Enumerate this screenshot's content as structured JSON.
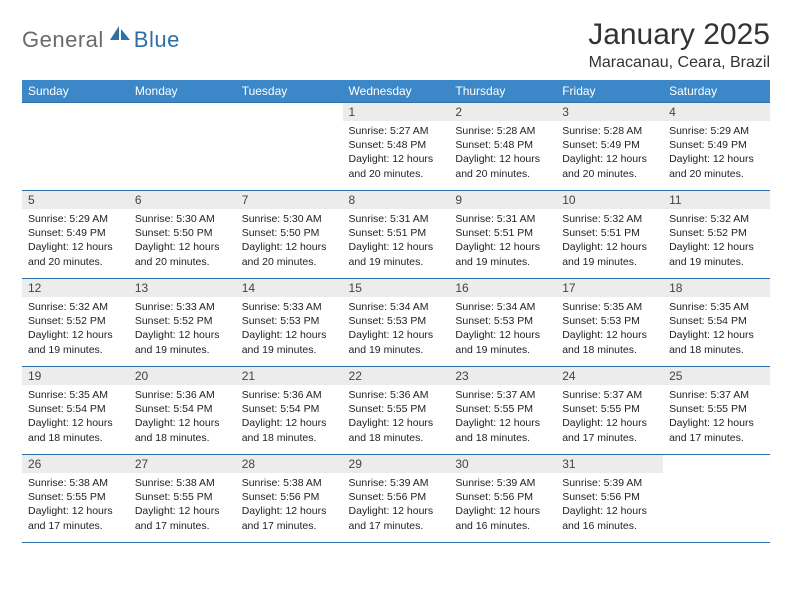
{
  "logo": {
    "general": "General",
    "blue": "Blue"
  },
  "title": "January 2025",
  "location": "Maracanau, Ceara, Brazil",
  "colors": {
    "header_bg": "#3b87c8",
    "header_text": "#ffffff",
    "rule": "#2f6fa9",
    "daynum_bg": "#ececec",
    "text": "#222222",
    "logo_gray": "#6a6a6a",
    "logo_blue": "#2f6fa9"
  },
  "typography": {
    "title_fontsize": 30,
    "location_fontsize": 16,
    "weekday_fontsize": 12,
    "daynum_fontsize": 12,
    "cell_fontsize": 10.5
  },
  "weekdays": [
    "Sunday",
    "Monday",
    "Tuesday",
    "Wednesday",
    "Thursday",
    "Friday",
    "Saturday"
  ],
  "weeks": [
    [
      null,
      null,
      null,
      {
        "n": "1",
        "sr": "5:27 AM",
        "ss": "5:48 PM",
        "dl": "12 hours and 20 minutes."
      },
      {
        "n": "2",
        "sr": "5:28 AM",
        "ss": "5:48 PM",
        "dl": "12 hours and 20 minutes."
      },
      {
        "n": "3",
        "sr": "5:28 AM",
        "ss": "5:49 PM",
        "dl": "12 hours and 20 minutes."
      },
      {
        "n": "4",
        "sr": "5:29 AM",
        "ss": "5:49 PM",
        "dl": "12 hours and 20 minutes."
      }
    ],
    [
      {
        "n": "5",
        "sr": "5:29 AM",
        "ss": "5:49 PM",
        "dl": "12 hours and 20 minutes."
      },
      {
        "n": "6",
        "sr": "5:30 AM",
        "ss": "5:50 PM",
        "dl": "12 hours and 20 minutes."
      },
      {
        "n": "7",
        "sr": "5:30 AM",
        "ss": "5:50 PM",
        "dl": "12 hours and 20 minutes."
      },
      {
        "n": "8",
        "sr": "5:31 AM",
        "ss": "5:51 PM",
        "dl": "12 hours and 19 minutes."
      },
      {
        "n": "9",
        "sr": "5:31 AM",
        "ss": "5:51 PM",
        "dl": "12 hours and 19 minutes."
      },
      {
        "n": "10",
        "sr": "5:32 AM",
        "ss": "5:51 PM",
        "dl": "12 hours and 19 minutes."
      },
      {
        "n": "11",
        "sr": "5:32 AM",
        "ss": "5:52 PM",
        "dl": "12 hours and 19 minutes."
      }
    ],
    [
      {
        "n": "12",
        "sr": "5:32 AM",
        "ss": "5:52 PM",
        "dl": "12 hours and 19 minutes."
      },
      {
        "n": "13",
        "sr": "5:33 AM",
        "ss": "5:52 PM",
        "dl": "12 hours and 19 minutes."
      },
      {
        "n": "14",
        "sr": "5:33 AM",
        "ss": "5:53 PM",
        "dl": "12 hours and 19 minutes."
      },
      {
        "n": "15",
        "sr": "5:34 AM",
        "ss": "5:53 PM",
        "dl": "12 hours and 19 minutes."
      },
      {
        "n": "16",
        "sr": "5:34 AM",
        "ss": "5:53 PM",
        "dl": "12 hours and 19 minutes."
      },
      {
        "n": "17",
        "sr": "5:35 AM",
        "ss": "5:53 PM",
        "dl": "12 hours and 18 minutes."
      },
      {
        "n": "18",
        "sr": "5:35 AM",
        "ss": "5:54 PM",
        "dl": "12 hours and 18 minutes."
      }
    ],
    [
      {
        "n": "19",
        "sr": "5:35 AM",
        "ss": "5:54 PM",
        "dl": "12 hours and 18 minutes."
      },
      {
        "n": "20",
        "sr": "5:36 AM",
        "ss": "5:54 PM",
        "dl": "12 hours and 18 minutes."
      },
      {
        "n": "21",
        "sr": "5:36 AM",
        "ss": "5:54 PM",
        "dl": "12 hours and 18 minutes."
      },
      {
        "n": "22",
        "sr": "5:36 AM",
        "ss": "5:55 PM",
        "dl": "12 hours and 18 minutes."
      },
      {
        "n": "23",
        "sr": "5:37 AM",
        "ss": "5:55 PM",
        "dl": "12 hours and 18 minutes."
      },
      {
        "n": "24",
        "sr": "5:37 AM",
        "ss": "5:55 PM",
        "dl": "12 hours and 17 minutes."
      },
      {
        "n": "25",
        "sr": "5:37 AM",
        "ss": "5:55 PM",
        "dl": "12 hours and 17 minutes."
      }
    ],
    [
      {
        "n": "26",
        "sr": "5:38 AM",
        "ss": "5:55 PM",
        "dl": "12 hours and 17 minutes."
      },
      {
        "n": "27",
        "sr": "5:38 AM",
        "ss": "5:55 PM",
        "dl": "12 hours and 17 minutes."
      },
      {
        "n": "28",
        "sr": "5:38 AM",
        "ss": "5:56 PM",
        "dl": "12 hours and 17 minutes."
      },
      {
        "n": "29",
        "sr": "5:39 AM",
        "ss": "5:56 PM",
        "dl": "12 hours and 17 minutes."
      },
      {
        "n": "30",
        "sr": "5:39 AM",
        "ss": "5:56 PM",
        "dl": "12 hours and 16 minutes."
      },
      {
        "n": "31",
        "sr": "5:39 AM",
        "ss": "5:56 PM",
        "dl": "12 hours and 16 minutes."
      },
      null
    ]
  ],
  "labels": {
    "sunrise": "Sunrise:",
    "sunset": "Sunset:",
    "daylight": "Daylight:"
  }
}
